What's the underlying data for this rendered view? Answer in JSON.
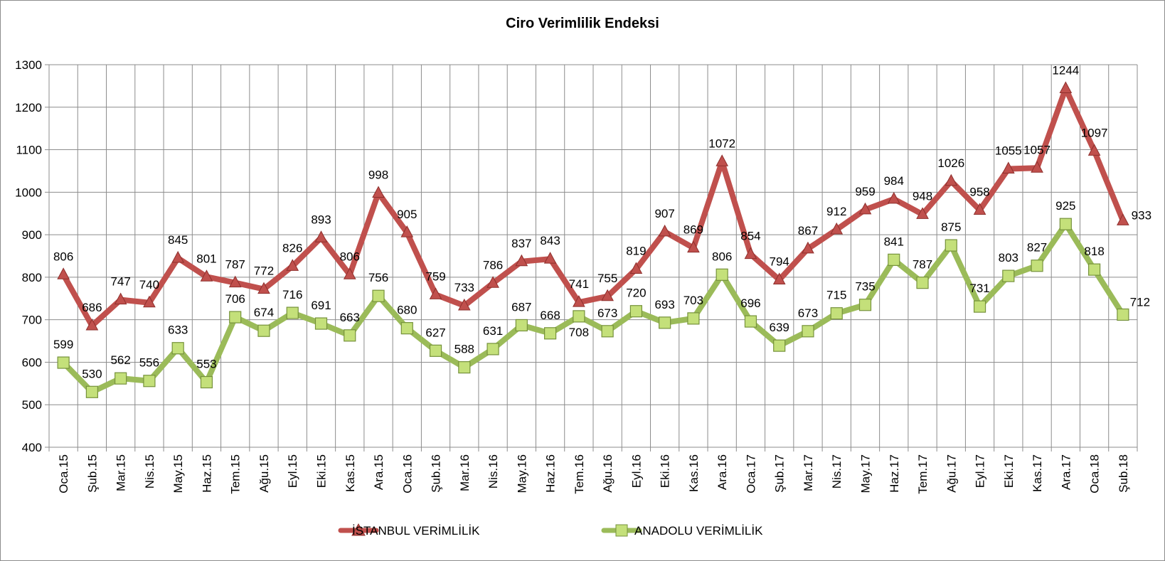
{
  "chart_data": {
    "type": "line",
    "title": "Ciro Verimlilik Endeksi",
    "xlabel": "",
    "ylabel": "",
    "ylim": [
      400,
      1300
    ],
    "ytick_step": 100,
    "yticks": [
      "400",
      "500",
      "600",
      "700",
      "800",
      "900",
      "1000",
      "1100",
      "1200",
      "1300"
    ],
    "grid": true,
    "legend_position": "bottom",
    "categories": [
      "Oca.15",
      "Şub.15",
      "Mar.15",
      "Nis.15",
      "May.15",
      "Haz.15",
      "Tem.15",
      "Ağu.15",
      "Eyl.15",
      "Eki.15",
      "Kas.15",
      "Ara.15",
      "Oca.16",
      "Şub.16",
      "Mar.16",
      "Nis.16",
      "May.16",
      "Haz.16",
      "Tem.16",
      "Ağu.16",
      "Eyl.16",
      "Eki.16",
      "Kas.16",
      "Ara.16",
      "Oca.17",
      "Şub.17",
      "Mar.17",
      "Nis.17",
      "May.17",
      "Haz.17",
      "Tem.17",
      "Ağu.17",
      "Eyl.17",
      "Eki.17",
      "Kas.17",
      "Ara.17",
      "Oca.18",
      "Şub.18"
    ],
    "series": [
      {
        "name": "İSTANBUL VERİMLİLİK",
        "color": "#c0504d",
        "marker": "triangle",
        "values": [
          806,
          686,
          747,
          740,
          845,
          801,
          787,
          772,
          826,
          893,
          806,
          998,
          905,
          759,
          733,
          786,
          837,
          843,
          741,
          755,
          819,
          907,
          869,
          1072,
          854,
          794,
          867,
          912,
          959,
          984,
          948,
          1026,
          958,
          1055,
          1057,
          1244,
          1097,
          933
        ]
      },
      {
        "name": "ANADOLU VERİMLİLİK",
        "color": "#9bbb59",
        "marker": "square",
        "values": [
          599,
          530,
          562,
          556,
          633,
          553,
          706,
          674,
          716,
          691,
          663,
          756,
          680,
          627,
          588,
          631,
          687,
          668,
          708,
          673,
          720,
          693,
          703,
          806,
          696,
          639,
          673,
          715,
          735,
          841,
          787,
          875,
          731,
          803,
          827,
          925,
          818,
          712
        ]
      }
    ]
  }
}
